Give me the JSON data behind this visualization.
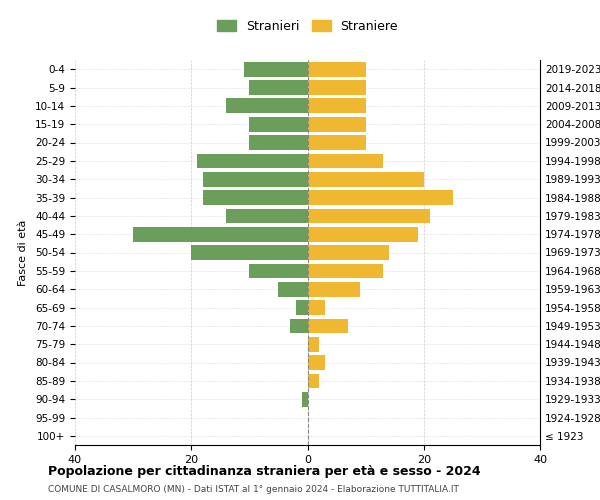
{
  "age_groups": [
    "100+",
    "95-99",
    "90-94",
    "85-89",
    "80-84",
    "75-79",
    "70-74",
    "65-69",
    "60-64",
    "55-59",
    "50-54",
    "45-49",
    "40-44",
    "35-39",
    "30-34",
    "25-29",
    "20-24",
    "15-19",
    "10-14",
    "5-9",
    "0-4"
  ],
  "birth_years": [
    "≤ 1923",
    "1924-1928",
    "1929-1933",
    "1934-1938",
    "1939-1943",
    "1944-1948",
    "1949-1953",
    "1954-1958",
    "1959-1963",
    "1964-1968",
    "1969-1973",
    "1974-1978",
    "1979-1983",
    "1984-1988",
    "1989-1993",
    "1994-1998",
    "1999-2003",
    "2004-2008",
    "2009-2013",
    "2014-2018",
    "2019-2023"
  ],
  "males": [
    0,
    0,
    1,
    0,
    0,
    0,
    3,
    2,
    5,
    10,
    20,
    30,
    14,
    18,
    18,
    19,
    10,
    10,
    14,
    10,
    11
  ],
  "females": [
    0,
    0,
    0,
    2,
    3,
    2,
    7,
    3,
    9,
    13,
    14,
    19,
    21,
    25,
    20,
    13,
    10,
    10,
    10,
    10,
    10
  ],
  "male_color": "#6a9e5a",
  "female_color": "#f0b830",
  "title": "Popolazione per cittadinanza straniera per età e sesso - 2024",
  "subtitle": "COMUNE DI CASALMORO (MN) - Dati ISTAT al 1° gennaio 2024 - Elaborazione TUTTITALIA.IT",
  "ylabel_left": "Fasce di età",
  "legend_male": "Stranieri",
  "legend_female": "Straniere",
  "xlim": 40,
  "bg_color": "#ffffff",
  "grid_color": "#cccccc",
  "bar_height": 0.8
}
